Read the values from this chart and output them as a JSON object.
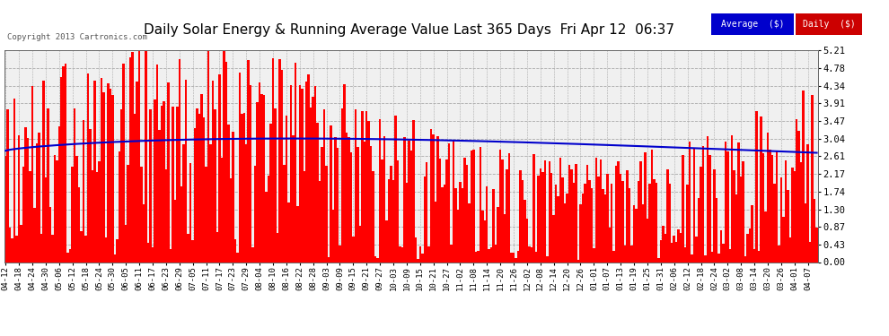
{
  "title": "Daily Solar Energy & Running Average Value Last 365 Days  Fri Apr 12  06:37",
  "copyright": "Copyright 2013 Cartronics.com",
  "yticks": [
    0.0,
    0.43,
    0.87,
    1.3,
    1.74,
    2.17,
    2.61,
    3.04,
    3.47,
    3.91,
    4.34,
    4.78,
    5.21
  ],
  "bar_color": "#ff0000",
  "avg_color": "#0000cc",
  "bg_color": "#ffffff",
  "plot_bg": "#f0f0f0",
  "grid_color": "#aaaaaa",
  "title_fontsize": 11,
  "legend_avg_bg": "#0000cc",
  "legend_daily_bg": "#cc0000",
  "legend_text_color": "#ffffff",
  "x_labels": [
    "04-12",
    "04-18",
    "04-24",
    "04-30",
    "05-06",
    "05-12",
    "05-18",
    "05-24",
    "05-30",
    "06-05",
    "06-11",
    "06-17",
    "06-23",
    "06-29",
    "07-05",
    "07-11",
    "07-17",
    "07-23",
    "07-29",
    "08-04",
    "08-10",
    "08-16",
    "08-22",
    "08-28",
    "09-03",
    "09-09",
    "09-15",
    "09-21",
    "09-27",
    "10-03",
    "10-09",
    "10-15",
    "10-21",
    "10-27",
    "11-02",
    "11-08",
    "11-14",
    "11-20",
    "11-26",
    "12-02",
    "12-08",
    "12-14",
    "12-20",
    "12-26",
    "01-01",
    "01-07",
    "01-13",
    "01-19",
    "01-25",
    "01-31",
    "02-06",
    "02-12",
    "02-18",
    "02-24",
    "03-02",
    "03-08",
    "03-14",
    "03-20",
    "03-26",
    "04-01",
    "04-07"
  ]
}
